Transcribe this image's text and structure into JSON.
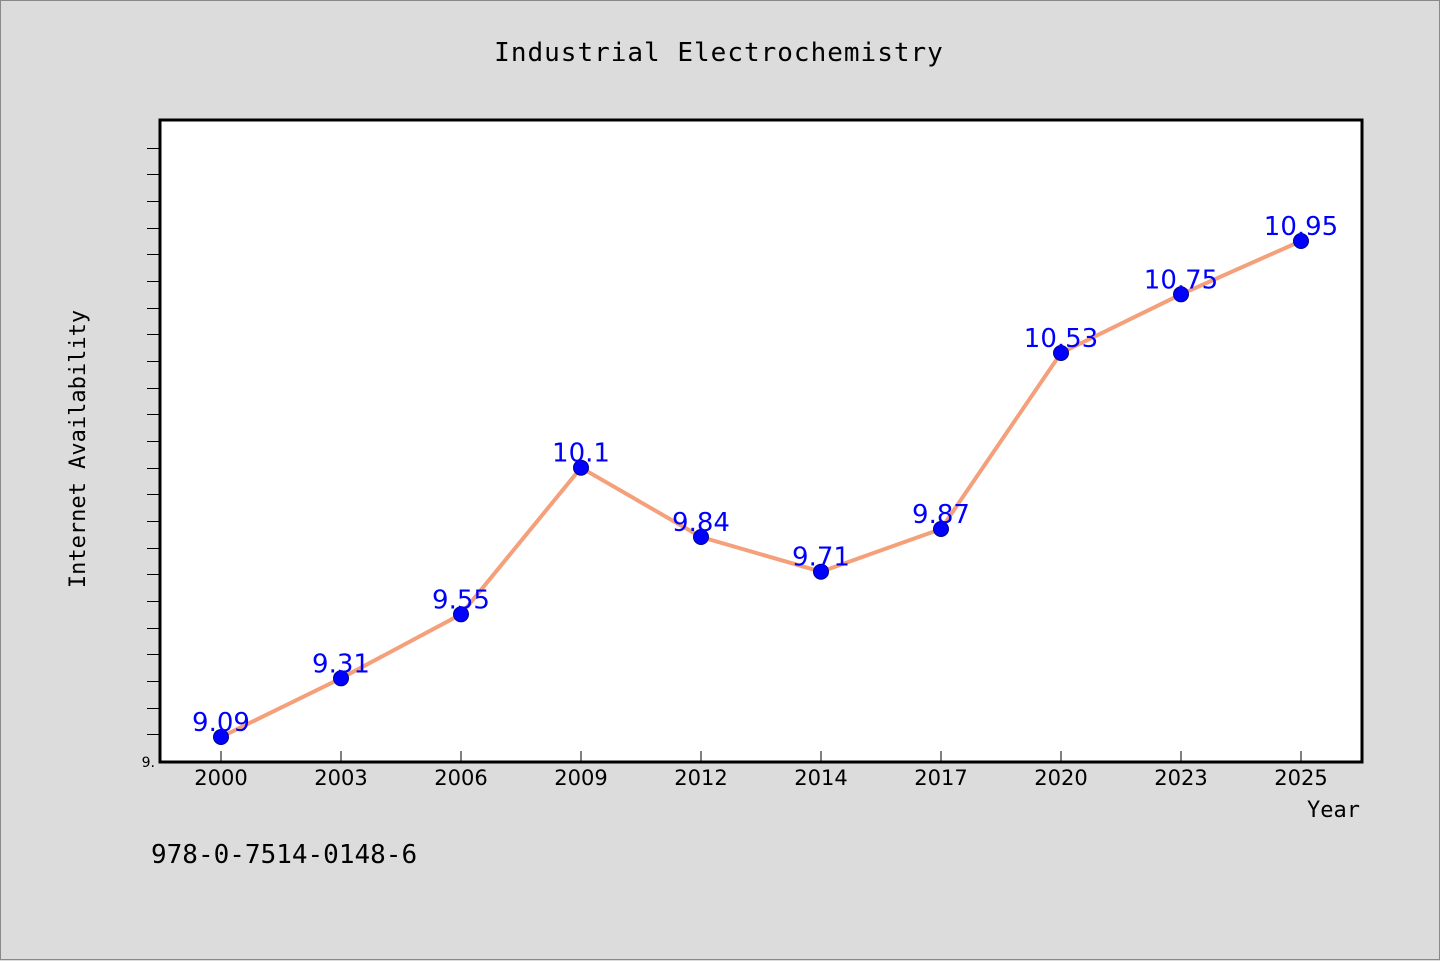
{
  "chart_data": {
    "type": "line",
    "title": "Industrial Electrochemistry",
    "xlabel": "Year",
    "ylabel": "Internet Availability",
    "y_tick_label": "9.",
    "categories": [
      "2000",
      "2003",
      "2006",
      "2009",
      "2012",
      "2014",
      "2017",
      "2020",
      "2023",
      "2025"
    ],
    "values": [
      9.09,
      9.31,
      9.55,
      10.1,
      9.84,
      9.71,
      9.87,
      10.53,
      10.75,
      10.95
    ],
    "data_labels": [
      "9.09",
      "9.31",
      "9.55",
      "10.1",
      "9.84",
      "9.71",
      "9.87",
      "10.53",
      "10.75",
      "10.95"
    ],
    "ylim": [
      9.0,
      11.4
    ],
    "grid": false,
    "line_color": "#f4a07a",
    "marker_color": "#0000ff",
    "label_color": "#0000ff"
  },
  "footer": {
    "isbn": "978-0-7514-0148-6"
  }
}
